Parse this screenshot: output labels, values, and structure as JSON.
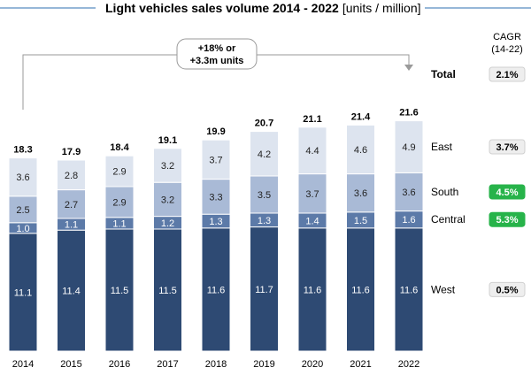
{
  "chart_data": {
    "type": "bar",
    "stacked": true,
    "title": "Light vehicles sales volume 2014 - 2022",
    "title_unit": "[units / million]",
    "categories": [
      "2014",
      "2015",
      "2016",
      "2017",
      "2018",
      "2019",
      "2020",
      "2021",
      "2022"
    ],
    "series": [
      {
        "name": "West",
        "values": [
          11.1,
          11.4,
          11.5,
          11.5,
          11.6,
          11.7,
          11.6,
          11.6,
          11.6
        ],
        "color": "#2e4a73"
      },
      {
        "name": "Central",
        "values": [
          1.0,
          1.1,
          1.1,
          1.2,
          1.3,
          1.3,
          1.4,
          1.5,
          1.6
        ],
        "color": "#5c7aa8"
      },
      {
        "name": "South",
        "values": [
          2.5,
          2.7,
          2.9,
          3.2,
          3.3,
          3.5,
          3.7,
          3.6,
          3.6
        ],
        "color": "#a9bad6"
      },
      {
        "name": "East",
        "values": [
          3.6,
          2.8,
          2.9,
          3.2,
          3.7,
          4.2,
          4.4,
          4.6,
          4.9
        ],
        "color": "#dde4ef"
      }
    ],
    "totals": [
      18.3,
      17.9,
      18.4,
      19.1,
      19.9,
      20.7,
      21.1,
      21.4,
      21.6
    ],
    "total_label": "Total",
    "annotation": [
      "+18% or",
      "+3.3m units"
    ],
    "cagr_header": [
      "CAGR",
      "(14-22)"
    ],
    "cagr": [
      {
        "name": "Total",
        "value": "2.1%",
        "highlight": false
      },
      {
        "name": "East",
        "value": "3.7%",
        "highlight": false
      },
      {
        "name": "South",
        "value": "4.5%",
        "highlight": true
      },
      {
        "name": "Central",
        "value": "5.3%",
        "highlight": true
      },
      {
        "name": "West",
        "value": "0.5%",
        "highlight": false
      }
    ],
    "colors": {
      "highlight": "#27b34a",
      "neutral_badge": "#eeeeee",
      "title_line": "#2e6fb0",
      "bracket": "#9a9a9a"
    }
  }
}
